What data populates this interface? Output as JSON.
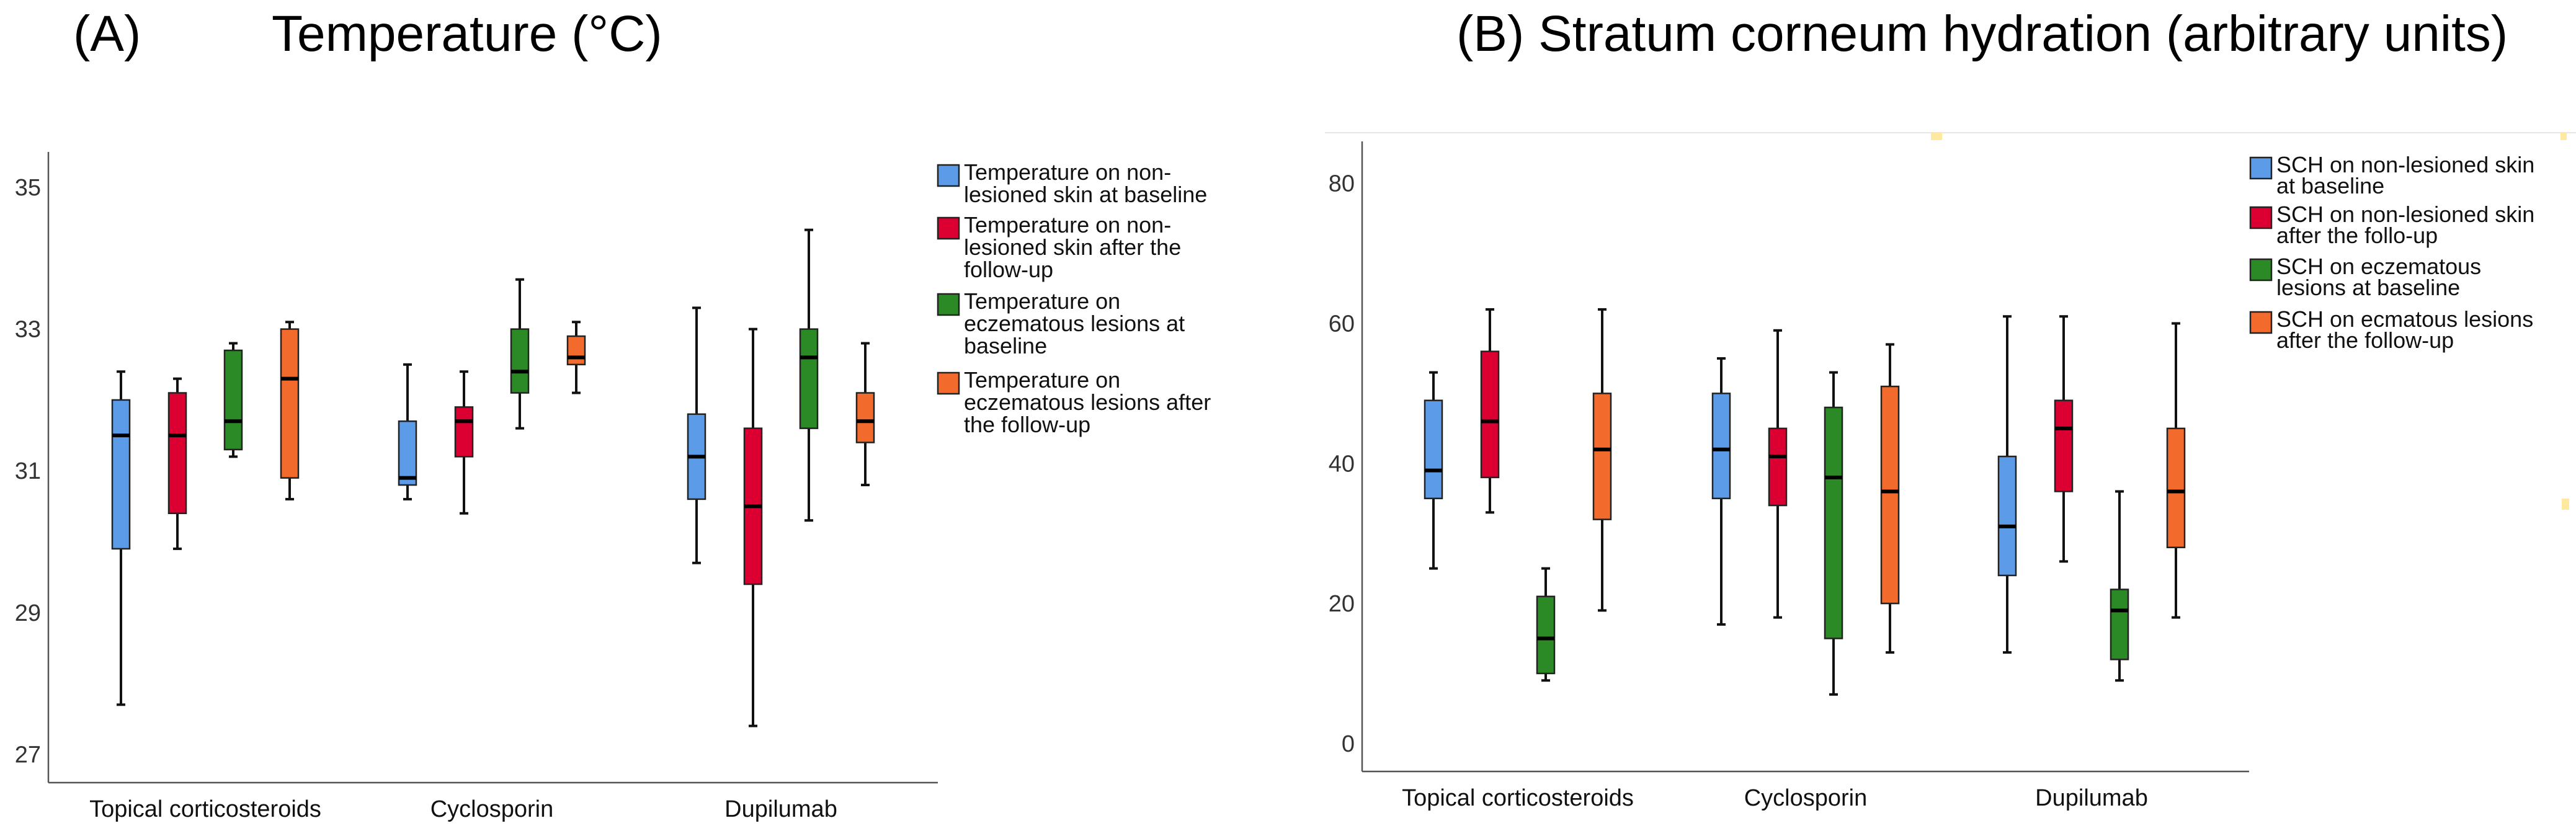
{
  "chart_data": [
    {
      "type": "boxplot",
      "panel_label": "(A)",
      "title": "Temperature (°C)",
      "xlabel": "",
      "ylabel": "",
      "ylim": [
        26.6,
        35.5
      ],
      "yticks": [
        "27",
        "29",
        "31",
        "33",
        "35"
      ],
      "grid": false,
      "legend_position": "right",
      "categories": [
        "Topical corticosteroids",
        "Cyclosporin",
        "Dupilumab"
      ],
      "series": [
        {
          "name": "Temperature on non-lesioned skin at baseline",
          "legend_lines": [
            "Temperature on non-",
            "lesioned skin at baseline"
          ],
          "color": "#5b9be8",
          "boxes": [
            {
              "min": 27.7,
              "q1": 29.9,
              "median": 31.5,
              "q3": 32.0,
              "max": 32.4
            },
            {
              "min": 30.6,
              "q1": 30.8,
              "median": 30.9,
              "q3": 31.7,
              "max": 32.5
            },
            {
              "min": 29.7,
              "q1": 30.6,
              "median": 31.2,
              "q3": 31.8,
              "max": 33.3
            }
          ]
        },
        {
          "name": "Temperature on non-lesioned skin after the follow-up",
          "legend_lines": [
            "Temperature on non-",
            "lesioned skin after the",
            "follow-up"
          ],
          "color": "#dc0032",
          "boxes": [
            {
              "min": 29.9,
              "q1": 30.4,
              "median": 31.5,
              "q3": 32.1,
              "max": 32.3
            },
            {
              "min": 30.4,
              "q1": 31.2,
              "median": 31.7,
              "q3": 31.9,
              "max": 32.4
            },
            {
              "min": 27.4,
              "q1": 29.4,
              "median": 30.5,
              "q3": 31.6,
              "max": 33.0
            }
          ]
        },
        {
          "name": "Temperature on eczematous lesions at baseline",
          "legend_lines": [
            "Temperature on",
            "eczematous lesions at",
            "baseline"
          ],
          "color": "#2b8a25",
          "boxes": [
            {
              "min": 31.2,
              "q1": 31.3,
              "median": 31.7,
              "q3": 32.7,
              "max": 32.8
            },
            {
              "min": 31.6,
              "q1": 32.1,
              "median": 32.4,
              "q3": 33.0,
              "max": 33.7
            },
            {
              "min": 30.3,
              "q1": 31.6,
              "median": 32.6,
              "q3": 33.0,
              "max": 34.4
            }
          ]
        },
        {
          "name": "Temperature on eczematous lesions after the follow-up",
          "legend_lines": [
            "Temperature on",
            "eczematous lesions after",
            "the follow-up"
          ],
          "color": "#f36b2c",
          "boxes": [
            {
              "min": 30.6,
              "q1": 30.9,
              "median": 32.3,
              "q3": 33.0,
              "max": 33.1
            },
            {
              "min": 32.1,
              "q1": 32.5,
              "median": 32.6,
              "q3": 32.9,
              "max": 33.1
            },
            {
              "min": 30.8,
              "q1": 31.4,
              "median": 31.7,
              "q3": 32.1,
              "max": 32.8
            }
          ]
        }
      ]
    },
    {
      "type": "boxplot",
      "panel_label": "",
      "title": "(B) Stratum corneum hydration (arbitrary units)",
      "xlabel": "",
      "ylabel": "",
      "ylim": [
        -4,
        86
      ],
      "yticks": [
        "0",
        "20",
        "40",
        "60",
        "80"
      ],
      "grid": false,
      "legend_position": "right",
      "categories": [
        "Topical corticosteroids",
        "Cyclosporin",
        "Dupilumab"
      ],
      "series": [
        {
          "name": "SCH on non-lesioned skin at baseline",
          "legend_lines": [
            "SCH on non-lesioned skin",
            "at baseline"
          ],
          "color": "#5b9be8",
          "boxes": [
            {
              "min": 25,
              "q1": 35,
              "median": 39,
              "q3": 49,
              "max": 53
            },
            {
              "min": 17,
              "q1": 35,
              "median": 42,
              "q3": 50,
              "max": 55
            },
            {
              "min": 13,
              "q1": 24,
              "median": 31,
              "q3": 41,
              "max": 61
            }
          ]
        },
        {
          "name": "SCH on non-lesioned skin after the follo-up",
          "legend_lines": [
            "SCH on non-lesioned skin",
            "after the follo-up"
          ],
          "color": "#dc0032",
          "boxes": [
            {
              "min": 33,
              "q1": 38,
              "median": 46,
              "q3": 56,
              "max": 62
            },
            {
              "min": 18,
              "q1": 34,
              "median": 41,
              "q3": 45,
              "max": 59
            },
            {
              "min": 26,
              "q1": 36,
              "median": 45,
              "q3": 49,
              "max": 61
            }
          ]
        },
        {
          "name": "SCH on eczematous lesions at baseline",
          "legend_lines": [
            "SCH on eczematous",
            "lesions at baseline"
          ],
          "color": "#2b8a25",
          "boxes": [
            {
              "min": 9,
              "q1": 10,
              "median": 15,
              "q3": 21,
              "max": 25
            },
            {
              "min": 7,
              "q1": 15,
              "median": 38,
              "q3": 48,
              "max": 53
            },
            {
              "min": 9,
              "q1": 12,
              "median": 19,
              "q3": 22,
              "max": 36
            }
          ]
        },
        {
          "name": "SCH on ecmatous lesions after the follow-up",
          "legend_lines": [
            "SCH on ecmatous lesions",
            "after the follow-up"
          ],
          "color": "#f36b2c",
          "boxes": [
            {
              "min": 19,
              "q1": 32,
              "median": 42,
              "q3": 50,
              "max": 62
            },
            {
              "min": 13,
              "q1": 20,
              "median": 36,
              "q3": 51,
              "max": 57
            },
            {
              "min": 18,
              "q1": 28,
              "median": 36,
              "q3": 45,
              "max": 60
            }
          ]
        }
      ]
    }
  ]
}
